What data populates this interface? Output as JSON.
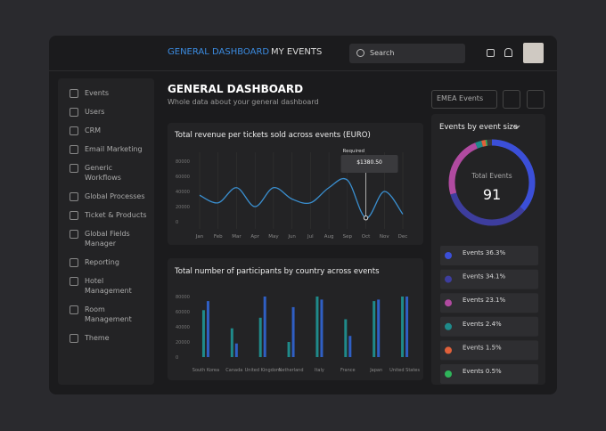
{
  "nav": {
    "tabs": [
      "GENERAL DASHBOARD",
      "MY EVENTS"
    ],
    "search": "Search"
  },
  "sidebar": {
    "items": [
      "Events",
      "Users",
      "CRM",
      "Email Marketing",
      "Generic Workflows",
      "Global Processes",
      "Ticket & Products",
      "Global Fields Manager",
      "Reporting",
      "Hotel Management",
      "Room Management",
      "Theme"
    ]
  },
  "header": {
    "title": "GENERAL DASHBOARD",
    "subtitle": "Whole data about your general dashboard",
    "filter": "EMEA Events"
  },
  "revenue_chart": {
    "type": "line",
    "title": "Total revenue per tickets sold across events (EURO)",
    "categories": [
      "Jan",
      "Feb",
      "Mar",
      "Apr",
      "May",
      "Jun",
      "Jul",
      "Aug",
      "Sep",
      "Oct",
      "Nov",
      "Dec"
    ],
    "values": [
      35000,
      25000,
      45000,
      20000,
      45000,
      30000,
      25000,
      45000,
      55000,
      5000,
      40000,
      10000
    ],
    "color": "#3a8fd0",
    "ylim": [
      0,
      80000
    ],
    "yticks": [
      0,
      20000,
      40000,
      60000,
      80000
    ],
    "grid": true,
    "tooltip": {
      "title": "Required",
      "value": "$1380.50"
    }
  },
  "participants_chart": {
    "type": "bar",
    "title": "Total number of participants by country across events",
    "categories": [
      "South Korea",
      "Canada",
      "United Kingdom",
      "Netherland",
      "Italy",
      "France",
      "Japan",
      "United States"
    ],
    "series": [
      {
        "color": "#1f8a8a",
        "values": [
          62000,
          38000,
          52000,
          20000,
          80000,
          50000,
          74000,
          80000
        ]
      },
      {
        "color": "#2f5fc4",
        "values": [
          74000,
          18000,
          80000,
          66000,
          76000,
          28000,
          76000,
          80000
        ]
      }
    ],
    "ylim": [
      0,
      80000
    ],
    "yticks": [
      0,
      20000,
      40000,
      60000,
      80000
    ],
    "grid": false
  },
  "donut": {
    "type": "donut",
    "title": "Events by event size",
    "center_label": "Total Events",
    "center_value": 91,
    "values": [
      36.3,
      34.1,
      23.1,
      2.4,
      1.5,
      0.5
    ],
    "value_labels": [
      "Events 36.3%",
      "Events 34.1%",
      "Events 23.1%",
      "Events 2.4%",
      "Events 1.5%",
      "Events 0.5%"
    ],
    "colors": [
      "#3b4fd8",
      "#3d3d9e",
      "#b04aa0",
      "#1f8a8a",
      "#e0603a",
      "#2fb45a"
    ]
  }
}
